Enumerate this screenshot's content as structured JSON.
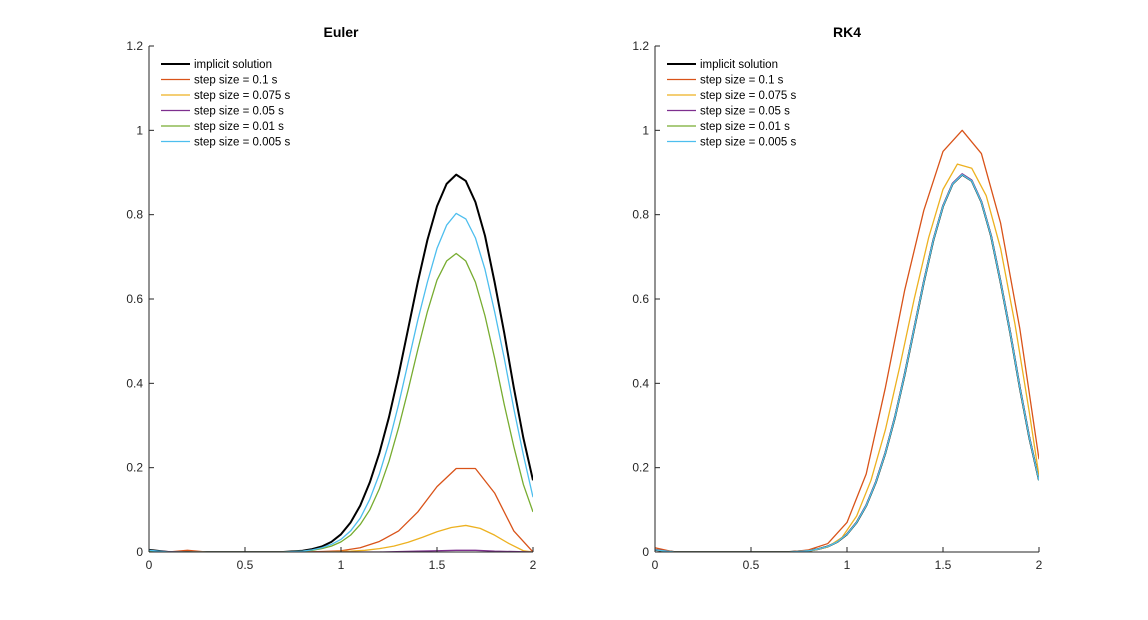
{
  "chart_data": [
    {
      "type": "line",
      "title": "Euler",
      "xlabel": "",
      "ylabel": "",
      "xlim": [
        0,
        2
      ],
      "ylim": [
        0,
        1.2
      ],
      "xticks": [
        0,
        0.5,
        1,
        1.5,
        2
      ],
      "xtick_labels": [
        "0",
        "0.5",
        "1",
        "1.5",
        "2"
      ],
      "yticks": [
        0,
        0.2,
        0.4,
        0.6,
        0.8,
        1,
        1.2
      ],
      "ytick_labels": [
        "0",
        "0.2",
        "0.4",
        "0.6",
        "0.8",
        "1",
        "1.2"
      ],
      "grid": false,
      "legend": "top-left",
      "series": [
        {
          "name": "implicit solution",
          "color": "#000000",
          "width": 2,
          "x": [
            0,
            0.1,
            0.2,
            0.3,
            0.4,
            0.5,
            0.6,
            0.7,
            0.8,
            0.85,
            0.9,
            0.95,
            1.0,
            1.05,
            1.1,
            1.15,
            1.2,
            1.25,
            1.3,
            1.35,
            1.4,
            1.45,
            1.5,
            1.55,
            1.6,
            1.65,
            1.7,
            1.75,
            1.8,
            1.85,
            1.9,
            1.95,
            2.0
          ],
          "y": [
            0.005,
            0,
            0,
            0,
            0,
            0,
            0,
            0,
            0.003,
            0.007,
            0.013,
            0.024,
            0.042,
            0.07,
            0.11,
            0.165,
            0.235,
            0.32,
            0.42,
            0.53,
            0.64,
            0.74,
            0.82,
            0.873,
            0.895,
            0.88,
            0.83,
            0.75,
            0.64,
            0.52,
            0.39,
            0.27,
            0.17
          ]
        },
        {
          "name": "step size = 0.1 s",
          "color": "#d95319",
          "width": 1.3,
          "x": [
            0,
            0.1,
            0.2,
            0.3,
            0.4,
            0.5,
            0.6,
            0.7,
            0.8,
            0.9,
            1.0,
            1.1,
            1.2,
            1.3,
            1.4,
            1.5,
            1.6,
            1.7,
            1.8,
            1.9,
            2.0
          ],
          "y": [
            0,
            0,
            0.004,
            0,
            0,
            0,
            0,
            0,
            0,
            0.001,
            0.003,
            0.01,
            0.025,
            0.05,
            0.095,
            0.155,
            0.198,
            0.198,
            0.14,
            0.05,
            0
          ]
        },
        {
          "name": "step size = 0.075 s",
          "color": "#edb120",
          "width": 1.3,
          "x": [
            0,
            0.075,
            0.15,
            0.225,
            0.3,
            0.375,
            0.45,
            0.525,
            0.6,
            0.675,
            0.75,
            0.825,
            0.9,
            0.975,
            1.05,
            1.125,
            1.2,
            1.275,
            1.35,
            1.425,
            1.5,
            1.575,
            1.65,
            1.725,
            1.8,
            1.875,
            1.95,
            2.0
          ],
          "y": [
            0,
            0,
            0,
            0,
            0,
            0,
            0,
            0,
            0,
            0,
            0,
            0,
            0,
            0.001,
            0.002,
            0.004,
            0.008,
            0.014,
            0.023,
            0.035,
            0.048,
            0.058,
            0.063,
            0.056,
            0.04,
            0.02,
            0.003,
            0
          ]
        },
        {
          "name": "step size = 0.05 s",
          "color": "#7e2f8e",
          "width": 1.3,
          "x": [
            0,
            0.2,
            0.4,
            0.6,
            0.8,
            1.0,
            1.2,
            1.4,
            1.5,
            1.6,
            1.7,
            1.8,
            1.9,
            2.0
          ],
          "y": [
            0.002,
            0,
            0,
            0,
            0,
            0,
            0,
            0.002,
            0.003,
            0.004,
            0.004,
            0.002,
            0.001,
            0
          ]
        },
        {
          "name": "step size = 0.01 s",
          "color": "#77ac30",
          "width": 1.3,
          "x": [
            0,
            0.1,
            0.2,
            0.3,
            0.4,
            0.5,
            0.6,
            0.7,
            0.8,
            0.85,
            0.9,
            0.95,
            1.0,
            1.05,
            1.1,
            1.15,
            1.2,
            1.25,
            1.3,
            1.35,
            1.4,
            1.45,
            1.5,
            1.55,
            1.6,
            1.65,
            1.7,
            1.75,
            1.8,
            1.85,
            1.9,
            1.95,
            2.0
          ],
          "y": [
            0.003,
            0,
            0,
            0,
            0,
            0,
            0,
            0,
            0.002,
            0.004,
            0.008,
            0.014,
            0.024,
            0.04,
            0.065,
            0.1,
            0.15,
            0.215,
            0.295,
            0.385,
            0.48,
            0.57,
            0.645,
            0.69,
            0.708,
            0.69,
            0.64,
            0.56,
            0.46,
            0.35,
            0.25,
            0.16,
            0.095
          ]
        },
        {
          "name": "step size = 0.005 s",
          "color": "#4dbeee",
          "width": 1.3,
          "x": [
            0,
            0.1,
            0.2,
            0.3,
            0.4,
            0.5,
            0.6,
            0.7,
            0.8,
            0.85,
            0.9,
            0.95,
            1.0,
            1.05,
            1.1,
            1.15,
            1.2,
            1.25,
            1.3,
            1.35,
            1.4,
            1.45,
            1.5,
            1.55,
            1.6,
            1.65,
            1.7,
            1.75,
            1.8,
            1.85,
            1.9,
            1.95,
            2.0
          ],
          "y": [
            0.004,
            0,
            0,
            0,
            0,
            0,
            0,
            0,
            0.002,
            0.005,
            0.01,
            0.018,
            0.03,
            0.05,
            0.08,
            0.125,
            0.185,
            0.26,
            0.35,
            0.45,
            0.55,
            0.64,
            0.72,
            0.775,
            0.803,
            0.79,
            0.745,
            0.67,
            0.57,
            0.46,
            0.34,
            0.23,
            0.13
          ]
        }
      ]
    },
    {
      "type": "line",
      "title": "RK4",
      "xlabel": "",
      "ylabel": "",
      "xlim": [
        0,
        2
      ],
      "ylim": [
        0,
        1.2
      ],
      "xticks": [
        0,
        0.5,
        1,
        1.5,
        2
      ],
      "xtick_labels": [
        "0",
        "0.5",
        "1",
        "1.5",
        "2"
      ],
      "yticks": [
        0,
        0.2,
        0.4,
        0.6,
        0.8,
        1,
        1.2
      ],
      "ytick_labels": [
        "0",
        "0.2",
        "0.4",
        "0.6",
        "0.8",
        "1",
        "1.2"
      ],
      "grid": false,
      "legend": "top-left",
      "series": [
        {
          "name": "implicit solution",
          "color": "#000000",
          "width": 2,
          "x": [
            0,
            0.1,
            0.2,
            0.3,
            0.4,
            0.5,
            0.6,
            0.7,
            0.8,
            0.85,
            0.9,
            0.95,
            1.0,
            1.05,
            1.1,
            1.15,
            1.2,
            1.25,
            1.3,
            1.35,
            1.4,
            1.45,
            1.5,
            1.55,
            1.6,
            1.65,
            1.7,
            1.75,
            1.8,
            1.85,
            1.9,
            1.95,
            2.0
          ],
          "y": [
            0.005,
            0,
            0,
            0,
            0,
            0,
            0,
            0,
            0.003,
            0.007,
            0.013,
            0.024,
            0.042,
            0.07,
            0.11,
            0.165,
            0.235,
            0.32,
            0.42,
            0.53,
            0.64,
            0.74,
            0.82,
            0.873,
            0.895,
            0.88,
            0.83,
            0.75,
            0.64,
            0.52,
            0.39,
            0.27,
            0.17
          ]
        },
        {
          "name": "step size = 0.1 s",
          "color": "#d95319",
          "width": 1.3,
          "x": [
            0,
            0.1,
            0.2,
            0.3,
            0.4,
            0.5,
            0.6,
            0.7,
            0.8,
            0.9,
            1.0,
            1.1,
            1.2,
            1.3,
            1.4,
            1.5,
            1.6,
            1.7,
            1.8,
            1.9,
            2.0
          ],
          "y": [
            0.01,
            0,
            0,
            0,
            0,
            0,
            0,
            0,
            0.005,
            0.02,
            0.07,
            0.185,
            0.39,
            0.62,
            0.81,
            0.95,
            1.0,
            0.945,
            0.78,
            0.53,
            0.22
          ]
        },
        {
          "name": "step size = 0.075 s",
          "color": "#edb120",
          "width": 1.3,
          "x": [
            0,
            0.075,
            0.15,
            0.225,
            0.3,
            0.375,
            0.45,
            0.525,
            0.6,
            0.675,
            0.75,
            0.825,
            0.9,
            0.975,
            1.05,
            1.125,
            1.2,
            1.275,
            1.35,
            1.425,
            1.5,
            1.575,
            1.65,
            1.725,
            1.8,
            1.875,
            1.95,
            2.0
          ],
          "y": [
            0.006,
            0,
            0,
            0,
            0,
            0,
            0,
            0,
            0,
            0,
            0,
            0.004,
            0.012,
            0.035,
            0.085,
            0.17,
            0.29,
            0.44,
            0.6,
            0.745,
            0.86,
            0.92,
            0.91,
            0.845,
            0.72,
            0.54,
            0.33,
            0.18
          ]
        },
        {
          "name": "step size = 0.05 s",
          "color": "#7e2f8e",
          "width": 1.3,
          "x": [
            0,
            0.1,
            0.2,
            0.3,
            0.4,
            0.5,
            0.6,
            0.7,
            0.8,
            0.85,
            0.9,
            0.95,
            1.0,
            1.05,
            1.1,
            1.15,
            1.2,
            1.25,
            1.3,
            1.35,
            1.4,
            1.45,
            1.5,
            1.55,
            1.6,
            1.65,
            1.7,
            1.75,
            1.8,
            1.85,
            1.9,
            1.95,
            2.0
          ],
          "y": [
            0.006,
            0,
            0,
            0,
            0,
            0,
            0,
            0,
            0.003,
            0.007,
            0.013,
            0.024,
            0.043,
            0.071,
            0.112,
            0.167,
            0.237,
            0.322,
            0.422,
            0.532,
            0.642,
            0.742,
            0.822,
            0.875,
            0.897,
            0.882,
            0.832,
            0.752,
            0.642,
            0.522,
            0.392,
            0.272,
            0.171
          ]
        },
        {
          "name": "step size = 0.01 s",
          "color": "#77ac30",
          "width": 1.3,
          "x": [
            0,
            0.1,
            0.2,
            0.3,
            0.4,
            0.5,
            0.6,
            0.7,
            0.8,
            0.85,
            0.9,
            0.95,
            1.0,
            1.05,
            1.1,
            1.15,
            1.2,
            1.25,
            1.3,
            1.35,
            1.4,
            1.45,
            1.5,
            1.55,
            1.6,
            1.65,
            1.7,
            1.75,
            1.8,
            1.85,
            1.9,
            1.95,
            2.0
          ],
          "y": [
            0.005,
            0,
            0,
            0,
            0,
            0,
            0,
            0,
            0.003,
            0.007,
            0.013,
            0.024,
            0.042,
            0.07,
            0.11,
            0.165,
            0.235,
            0.32,
            0.42,
            0.53,
            0.64,
            0.74,
            0.82,
            0.873,
            0.895,
            0.88,
            0.83,
            0.75,
            0.64,
            0.52,
            0.39,
            0.27,
            0.17
          ]
        },
        {
          "name": "step size = 0.005 s",
          "color": "#4dbeee",
          "width": 1.3,
          "x": [
            0,
            0.1,
            0.2,
            0.3,
            0.4,
            0.5,
            0.6,
            0.7,
            0.8,
            0.85,
            0.9,
            0.95,
            1.0,
            1.05,
            1.1,
            1.15,
            1.2,
            1.25,
            1.3,
            1.35,
            1.4,
            1.45,
            1.5,
            1.55,
            1.6,
            1.65,
            1.7,
            1.75,
            1.8,
            1.85,
            1.9,
            1.95,
            2.0
          ],
          "y": [
            0.005,
            0,
            0,
            0,
            0,
            0,
            0,
            0,
            0.003,
            0.007,
            0.013,
            0.024,
            0.042,
            0.07,
            0.11,
            0.165,
            0.235,
            0.32,
            0.42,
            0.53,
            0.64,
            0.74,
            0.82,
            0.873,
            0.895,
            0.88,
            0.83,
            0.75,
            0.64,
            0.52,
            0.39,
            0.27,
            0.17
          ]
        }
      ]
    }
  ]
}
